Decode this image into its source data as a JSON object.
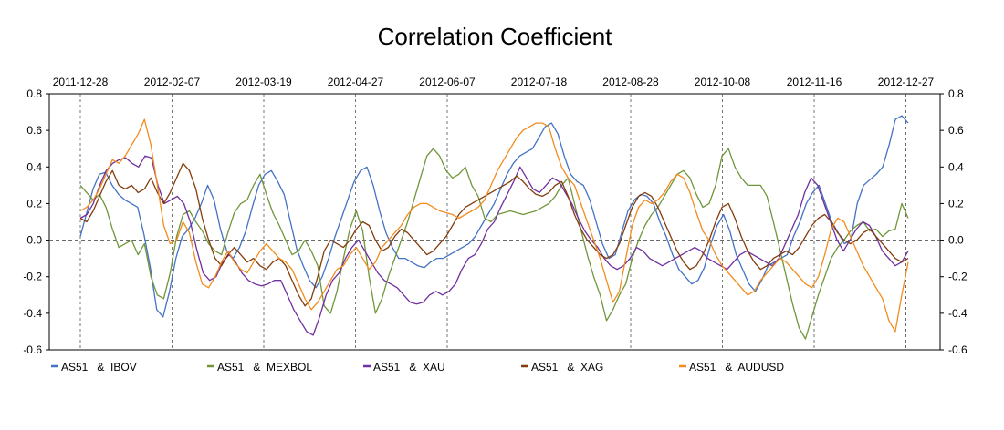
{
  "chart_data": {
    "type": "line",
    "title": "Correlation Coefficient",
    "xlabel": "",
    "ylabel": "",
    "ylim": [
      -0.6,
      0.8
    ],
    "yticks": [
      "0.8",
      "0.6",
      "0.4",
      "0.2",
      "0.0",
      "-0.2",
      "-0.4",
      "-0.6"
    ],
    "x_ticks": [
      "2011-12-28",
      "2012-02-07",
      "2012-03-19",
      "2012-04-27",
      "2012-06-07",
      "2012-07-18",
      "2012-08-28",
      "2012-10-08",
      "2012-11-16",
      "2012-12-27"
    ],
    "vertical_gridlines": "dashed at each date tick",
    "zero_line": "dashed",
    "legend_position": "bottom",
    "series": [
      {
        "name": "AS51   &  IBOV",
        "color": "#4472C4",
        "values": [
          0.02,
          0.15,
          0.28,
          0.36,
          0.37,
          0.3,
          0.25,
          0.22,
          0.2,
          0.18,
          0.03,
          -0.15,
          -0.38,
          -0.42,
          -0.28,
          -0.1,
          0.02,
          0.06,
          0.12,
          0.2,
          0.3,
          0.22,
          0.06,
          -0.06,
          -0.1,
          -0.04,
          0.05,
          0.18,
          0.3,
          0.36,
          0.38,
          0.32,
          0.25,
          0.1,
          -0.05,
          -0.14,
          -0.22,
          -0.26,
          -0.2,
          -0.1,
          0.02,
          0.12,
          0.22,
          0.32,
          0.38,
          0.4,
          0.3,
          0.16,
          0.04,
          -0.04,
          -0.1,
          -0.1,
          -0.12,
          -0.14,
          -0.15,
          -0.12,
          -0.1,
          -0.1,
          -0.08,
          -0.06,
          -0.04,
          -0.02,
          0.02,
          0.08,
          0.14,
          0.2,
          0.28,
          0.36,
          0.42,
          0.46,
          0.48,
          0.5,
          0.56,
          0.62,
          0.64,
          0.58,
          0.46,
          0.36,
          0.32,
          0.3,
          0.22,
          0.1,
          -0.02,
          -0.1,
          -0.08,
          0.04,
          0.16,
          0.22,
          0.25,
          0.24,
          0.2,
          0.1,
          0.02,
          -0.08,
          -0.16,
          -0.2,
          -0.24,
          -0.22,
          -0.15,
          -0.02,
          0.08,
          0.14,
          0.05,
          -0.08,
          -0.16,
          -0.24,
          -0.28,
          -0.22,
          -0.14,
          -0.12,
          -0.1,
          -0.08,
          0.02,
          0.1,
          0.2,
          0.26,
          0.3,
          0.2,
          0.1,
          0.04,
          -0.02,
          0.0,
          0.2,
          0.3,
          0.33,
          0.36,
          0.4,
          0.52,
          0.66,
          0.68,
          0.64
        ]
      },
      {
        "name": "AS51   &  MEXBOL",
        "color": "#70963A",
        "values": [
          0.3,
          0.26,
          0.22,
          0.25,
          0.18,
          0.06,
          -0.04,
          -0.02,
          0.0,
          -0.08,
          -0.02,
          -0.2,
          -0.3,
          -0.32,
          -0.18,
          0.02,
          0.14,
          0.16,
          0.1,
          0.05,
          -0.02,
          -0.06,
          -0.08,
          0.04,
          0.15,
          0.2,
          0.22,
          0.3,
          0.36,
          0.25,
          0.15,
          0.08,
          0.0,
          -0.08,
          -0.06,
          0.0,
          -0.06,
          -0.14,
          -0.36,
          -0.4,
          -0.28,
          -0.1,
          0.06,
          0.16,
          0.05,
          -0.2,
          -0.4,
          -0.32,
          -0.2,
          -0.1,
          0.0,
          0.1,
          0.22,
          0.34,
          0.46,
          0.5,
          0.46,
          0.38,
          0.34,
          0.36,
          0.4,
          0.3,
          0.24,
          0.12,
          0.1,
          0.14,
          0.15,
          0.16,
          0.15,
          0.14,
          0.15,
          0.16,
          0.18,
          0.2,
          0.24,
          0.3,
          0.34,
          0.2,
          0.06,
          -0.08,
          -0.2,
          -0.3,
          -0.44,
          -0.38,
          -0.3,
          -0.24,
          -0.1,
          0.0,
          0.08,
          0.14,
          0.18,
          0.24,
          0.3,
          0.36,
          0.38,
          0.34,
          0.25,
          0.18,
          0.2,
          0.3,
          0.46,
          0.5,
          0.4,
          0.34,
          0.3,
          0.3,
          0.3,
          0.24,
          0.1,
          -0.05,
          -0.2,
          -0.35,
          -0.48,
          -0.54,
          -0.42,
          -0.3,
          -0.2,
          -0.1,
          -0.04,
          0.0,
          0.05,
          0.08,
          0.1,
          0.05,
          0.06,
          0.02,
          0.05,
          0.06,
          0.2,
          0.12
        ]
      },
      {
        "name": "AS51   &  XAU",
        "color": "#7030A0",
        "values": [
          0.12,
          0.14,
          0.2,
          0.3,
          0.38,
          0.42,
          0.44,
          0.45,
          0.42,
          0.4,
          0.46,
          0.45,
          0.3,
          0.2,
          0.22,
          0.24,
          0.2,
          0.1,
          -0.05,
          -0.18,
          -0.22,
          -0.2,
          -0.12,
          -0.08,
          -0.12,
          -0.18,
          -0.22,
          -0.24,
          -0.25,
          -0.24,
          -0.22,
          -0.22,
          -0.3,
          -0.38,
          -0.44,
          -0.5,
          -0.52,
          -0.42,
          -0.3,
          -0.22,
          -0.18,
          -0.1,
          -0.04,
          0.0,
          -0.06,
          -0.12,
          -0.18,
          -0.22,
          -0.24,
          -0.26,
          -0.3,
          -0.34,
          -0.35,
          -0.34,
          -0.3,
          -0.28,
          -0.3,
          -0.28,
          -0.24,
          -0.16,
          -0.1,
          -0.08,
          -0.02,
          0.06,
          0.1,
          0.18,
          0.25,
          0.32,
          0.4,
          0.34,
          0.28,
          0.26,
          0.3,
          0.34,
          0.32,
          0.26,
          0.2,
          0.12,
          0.05,
          0.0,
          -0.04,
          -0.1,
          -0.14,
          -0.16,
          -0.14,
          -0.1,
          -0.04,
          -0.06,
          -0.1,
          -0.12,
          -0.14,
          -0.12,
          -0.1,
          -0.08,
          -0.06,
          -0.04,
          -0.06,
          -0.1,
          -0.12,
          -0.14,
          -0.16,
          -0.12,
          -0.08,
          -0.06,
          -0.08,
          -0.1,
          -0.12,
          -0.14,
          -0.1,
          -0.02,
          0.06,
          0.14,
          0.26,
          0.34,
          0.3,
          0.2,
          0.1,
          0.0,
          -0.06,
          0.0,
          0.06,
          0.1,
          0.08,
          0.02,
          -0.06,
          -0.1,
          -0.14,
          -0.12,
          -0.06
        ]
      },
      {
        "name": "AS51   &  XAG",
        "color": "#843C0C",
        "values": [
          0.12,
          0.1,
          0.16,
          0.24,
          0.32,
          0.38,
          0.3,
          0.28,
          0.3,
          0.26,
          0.28,
          0.34,
          0.26,
          0.2,
          0.26,
          0.34,
          0.42,
          0.38,
          0.28,
          0.12,
          0.0,
          -0.1,
          -0.14,
          -0.08,
          -0.04,
          -0.08,
          -0.12,
          -0.1,
          -0.14,
          -0.16,
          -0.12,
          -0.1,
          -0.14,
          -0.22,
          -0.3,
          -0.36,
          -0.32,
          -0.2,
          -0.06,
          0.0,
          -0.02,
          -0.04,
          0.0,
          0.06,
          0.1,
          0.08,
          0.0,
          -0.06,
          -0.04,
          0.02,
          0.06,
          0.04,
          0.0,
          -0.04,
          -0.08,
          -0.06,
          -0.02,
          0.02,
          0.08,
          0.14,
          0.18,
          0.2,
          0.22,
          0.24,
          0.26,
          0.28,
          0.3,
          0.32,
          0.35,
          0.32,
          0.28,
          0.25,
          0.24,
          0.26,
          0.3,
          0.32,
          0.24,
          0.14,
          0.06,
          0.0,
          -0.04,
          -0.08,
          -0.1,
          -0.08,
          -0.02,
          0.08,
          0.18,
          0.24,
          0.26,
          0.24,
          0.18,
          0.1,
          0.02,
          -0.06,
          -0.12,
          -0.16,
          -0.14,
          -0.08,
          0.0,
          0.1,
          0.18,
          0.2,
          0.12,
          0.02,
          -0.06,
          -0.12,
          -0.16,
          -0.14,
          -0.1,
          -0.08,
          -0.06,
          -0.08,
          -0.04,
          0.02,
          0.08,
          0.12,
          0.14,
          0.1,
          0.04,
          0.0,
          -0.02,
          0.0,
          0.04,
          0.06,
          0.02,
          -0.02,
          -0.06,
          -0.1,
          -0.12,
          -0.1
        ]
      },
      {
        "name": "AS51   &  AUDUSD",
        "color": "#F28C1E",
        "values": [
          0.16,
          0.18,
          0.22,
          0.28,
          0.36,
          0.44,
          0.42,
          0.46,
          0.52,
          0.58,
          0.66,
          0.52,
          0.3,
          0.08,
          -0.02,
          0.0,
          0.1,
          0.04,
          -0.12,
          -0.24,
          -0.26,
          -0.2,
          -0.12,
          -0.06,
          -0.12,
          -0.16,
          -0.18,
          -0.12,
          -0.06,
          -0.02,
          -0.06,
          -0.1,
          -0.12,
          -0.16,
          -0.24,
          -0.32,
          -0.38,
          -0.34,
          -0.28,
          -0.22,
          -0.16,
          -0.14,
          -0.08,
          -0.04,
          -0.1,
          -0.16,
          -0.12,
          -0.04,
          0.0,
          0.04,
          0.08,
          0.14,
          0.18,
          0.2,
          0.2,
          0.18,
          0.16,
          0.15,
          0.14,
          0.12,
          0.14,
          0.16,
          0.18,
          0.22,
          0.3,
          0.38,
          0.44,
          0.5,
          0.56,
          0.6,
          0.62,
          0.64,
          0.64,
          0.62,
          0.5,
          0.4,
          0.34,
          0.3,
          0.2,
          0.1,
          0.0,
          -0.1,
          -0.22,
          -0.34,
          -0.28,
          -0.1,
          0.08,
          0.18,
          0.22,
          0.2,
          0.22,
          0.26,
          0.32,
          0.36,
          0.34,
          0.26,
          0.15,
          0.05,
          0.0,
          -0.08,
          -0.14,
          -0.18,
          -0.22,
          -0.26,
          -0.3,
          -0.28,
          -0.22,
          -0.18,
          -0.14,
          -0.1,
          -0.12,
          -0.16,
          -0.2,
          -0.24,
          -0.26,
          -0.2,
          -0.08,
          0.06,
          0.12,
          0.1,
          0.02,
          -0.06,
          -0.14,
          -0.2,
          -0.26,
          -0.32,
          -0.44,
          -0.5,
          -0.3,
          -0.12
        ]
      }
    ]
  }
}
